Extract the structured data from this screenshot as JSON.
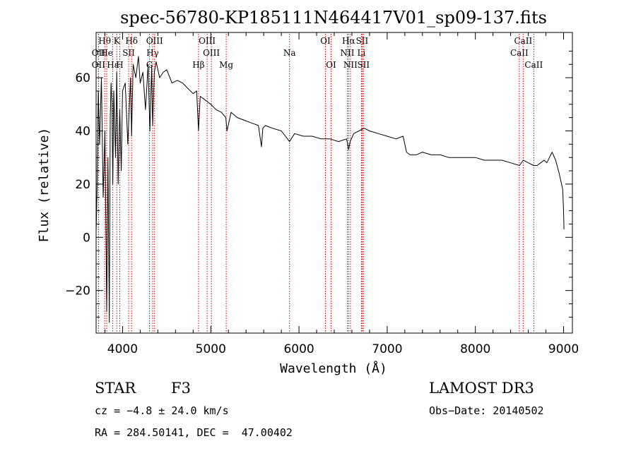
{
  "chart_data": {
    "type": "line",
    "title": "spec-56780-KP185111N464417V01_sp09-137.fits",
    "xlabel": "Wavelength (Å)",
    "ylabel": "Flux (relative)",
    "xlim": [
      3700,
      9100
    ],
    "ylim": [
      -36,
      77
    ],
    "xticks": [
      4000,
      5000,
      6000,
      7000,
      8000,
      9000
    ],
    "yticks": [
      -20,
      0,
      20,
      40,
      60
    ],
    "grid": false,
    "legend": "none",
    "series": [
      {
        "name": "flux",
        "x": [
          3700,
          3712,
          3725,
          3740,
          3760,
          3780,
          3800,
          3820,
          3835,
          3850,
          3860,
          3870,
          3880,
          3889,
          3900,
          3920,
          3934,
          3950,
          3968,
          3985,
          4000,
          4030,
          4060,
          4090,
          4102,
          4120,
          4150,
          4180,
          4200,
          4230,
          4260,
          4290,
          4310,
          4330,
          4341,
          4360,
          4380,
          4420,
          4460,
          4500,
          4560,
          4620,
          4680,
          4740,
          4800,
          4840,
          4861,
          4880,
          4920,
          4960,
          5000,
          5060,
          5120,
          5170,
          5184,
          5230,
          5300,
          5380,
          5460,
          5540,
          5575,
          5590,
          5620,
          5700,
          5800,
          5893,
          5950,
          6050,
          6150,
          6250,
          6350,
          6450,
          6540,
          6563,
          6580,
          6620,
          6680,
          6740,
          6800,
          6900,
          7000,
          7100,
          7180,
          7220,
          7260,
          7330,
          7400,
          7500,
          7600,
          7700,
          7800,
          7900,
          8000,
          8100,
          8200,
          8300,
          8400,
          8500,
          8542,
          8600,
          8662,
          8700,
          8740,
          8780,
          8810,
          8840,
          8870,
          8910,
          8950,
          8990,
          9000,
          9005
        ],
        "values": [
          2,
          20,
          55,
          35,
          60,
          15,
          40,
          -28,
          30,
          -32,
          45,
          58,
          50,
          20,
          55,
          30,
          62,
          20,
          48,
          25,
          55,
          58,
          35,
          60,
          38,
          65,
          60,
          68,
          58,
          62,
          48,
          65,
          40,
          64,
          42,
          62,
          66,
          60,
          62,
          63,
          58,
          59,
          58,
          56,
          54,
          55,
          40,
          53,
          52,
          51,
          50,
          48,
          47,
          45,
          40,
          47,
          45,
          44,
          43,
          42,
          34,
          41,
          42,
          41,
          40,
          36,
          39,
          38,
          38,
          37,
          37,
          36,
          37,
          33,
          36,
          39,
          40,
          41,
          40,
          39,
          38,
          37,
          38,
          32,
          31,
          31,
          32,
          31,
          31,
          30,
          30,
          30,
          30,
          29,
          29,
          29,
          28,
          27,
          29,
          28,
          27,
          27,
          28,
          29,
          28,
          30,
          32,
          29,
          24,
          18,
          10,
          3
        ]
      }
    ],
    "line_markers": [
      {
        "label": "Hθ",
        "x": 3797,
        "row": 1
      },
      {
        "label": "K",
        "x": 3934,
        "row": 1
      },
      {
        "label": "Hδ",
        "x": 4102,
        "row": 1
      },
      {
        "label": "OIII",
        "x": 4363,
        "row": 1
      },
      {
        "label": "OIII",
        "x": 4959,
        "row": 1
      },
      {
        "label": "OI",
        "x": 6300,
        "row": 1
      },
      {
        "label": "Hα",
        "x": 6563,
        "row": 1
      },
      {
        "label": "SII",
        "x": 6716,
        "row": 1
      },
      {
        "label": "CaII",
        "x": 8542,
        "row": 1
      },
      {
        "label": "OII",
        "x": 3727,
        "row": 2
      },
      {
        "label": "He",
        "x": 3820,
        "row": 2
      },
      {
        "label": "SII",
        "x": 4069,
        "row": 2
      },
      {
        "label": "Hγ",
        "x": 4341,
        "row": 2
      },
      {
        "label": "OIII",
        "x": 5007,
        "row": 2
      },
      {
        "label": "Na",
        "x": 5893,
        "row": 2
      },
      {
        "label": "NII",
        "x": 6548,
        "row": 2
      },
      {
        "label": "Li",
        "x": 6708,
        "row": 2
      },
      {
        "label": "CaII",
        "x": 8498,
        "row": 2
      },
      {
        "label": "OII",
        "x": 3727,
        "row": 3
      },
      {
        "label": "Hε",
        "x": 3889,
        "row": 3
      },
      {
        "label": "H",
        "x": 3968,
        "row": 3
      },
      {
        "label": "G",
        "x": 4305,
        "row": 3
      },
      {
        "label": "Hβ",
        "x": 4861,
        "row": 3
      },
      {
        "label": "Mg",
        "x": 5175,
        "row": 3
      },
      {
        "label": "OI",
        "x": 6364,
        "row": 3
      },
      {
        "label": "NII",
        "x": 6583,
        "row": 3
      },
      {
        "label": "SII",
        "x": 6731,
        "row": 3
      },
      {
        "label": "CaII",
        "x": 8662,
        "row": 3
      }
    ],
    "marker_color": "#cc0000"
  },
  "info": {
    "class_label": "STAR",
    "subclass": "F3",
    "survey": "LAMOST DR3",
    "cz": "cz = −4.8 ± 24.0 km/s",
    "obs_date": "Obs−Date: 20140502",
    "radec": "RA = 284.50141, DEC =  47.00402"
  }
}
